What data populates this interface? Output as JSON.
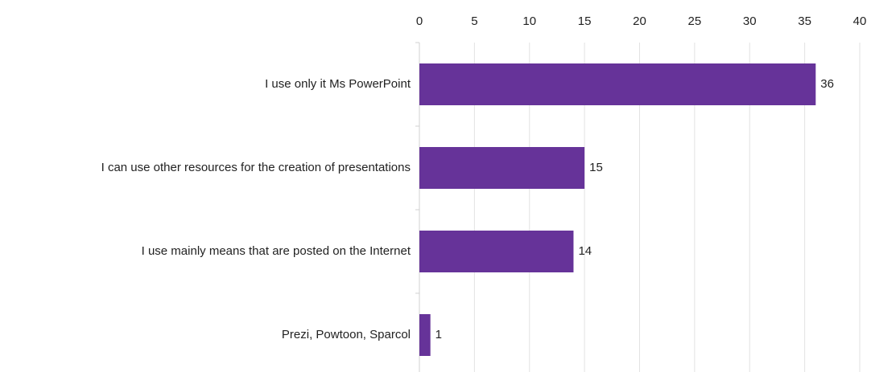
{
  "chart_data": {
    "type": "bar",
    "orientation": "horizontal",
    "categories": [
      "I use only it Ms PowerPoint",
      "I can use other resources for the creation of presentations",
      "I use mainly means that are posted on the Internet",
      "Prezi, Powtoon, Sparcol"
    ],
    "values": [
      36,
      15,
      14,
      1
    ],
    "color": "#663399",
    "xlim": [
      0,
      40
    ],
    "xticks": [
      0,
      5,
      10,
      15,
      20,
      25,
      30,
      35,
      40
    ],
    "grid": true
  }
}
